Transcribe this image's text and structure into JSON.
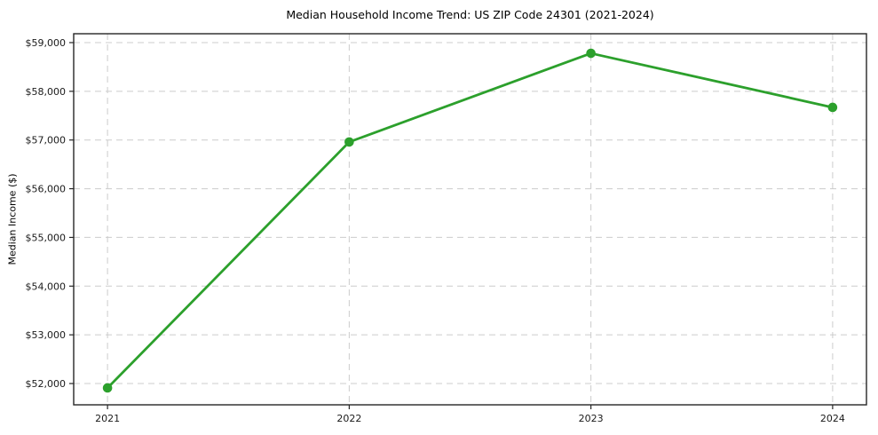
{
  "chart_data": {
    "type": "line",
    "title": "Median Household Income Trend: US ZIP Code 24301 (2021-2024)",
    "xlabel": "",
    "ylabel": "Median Income ($)",
    "x": [
      2021,
      2022,
      2023,
      2024
    ],
    "series": [
      {
        "name": "Median Household Income",
        "values": [
          51910,
          56960,
          58780,
          57670
        ],
        "color": "#2ca02c",
        "marker": "circle"
      }
    ],
    "xticks": [
      2021,
      2022,
      2023,
      2024
    ],
    "xtick_labels": [
      "2021",
      "2022",
      "2023",
      "2024"
    ],
    "yticks": [
      52000,
      53000,
      54000,
      55000,
      56000,
      57000,
      58000,
      59000
    ],
    "ytick_labels": [
      "$52,000",
      "$53,000",
      "$54,000",
      "$55,000",
      "$56,000",
      "$57,000",
      "$58,000",
      "$59,000"
    ],
    "xlim": [
      2020.86,
      2024.14
    ],
    "ylim": [
      51563,
      59182
    ],
    "grid": true,
    "grid_style": "dashed",
    "grid_color": "#cccccc",
    "axis_color": "#262626",
    "text_color": "#1a1a1a",
    "background": "#ffffff",
    "legend_position": "none"
  }
}
